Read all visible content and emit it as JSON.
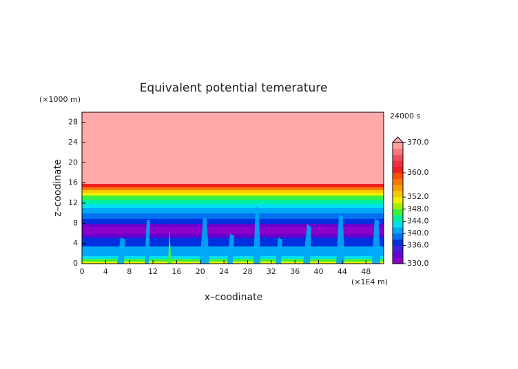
{
  "chart_data": {
    "type": "contour",
    "title": "Equivalent potential temerature",
    "xlabel": "x–coodinate",
    "ylabel": "z–coodinate",
    "x_unit_label": "(×1E4 m)",
    "y_unit_label": "(×1000 m)",
    "time_label": "24000 s",
    "xlim": [
      0,
      51
    ],
    "xticks": [
      0,
      4,
      8,
      12,
      16,
      20,
      24,
      28,
      32,
      36,
      40,
      44,
      48
    ],
    "ylim": [
      0,
      30
    ],
    "yticks": [
      0,
      4,
      8,
      12,
      16,
      20,
      24,
      28
    ],
    "colorbar": {
      "lim": [
        330,
        370
      ],
      "ticks": [
        {
          "value": 330,
          "label": "330.0"
        },
        {
          "value": 336,
          "label": "336.0"
        },
        {
          "value": 340,
          "label": "340.0"
        },
        {
          "value": 344,
          "label": "344.0"
        },
        {
          "value": 348,
          "label": "348.0"
        },
        {
          "value": 352,
          "label": "352.0"
        },
        {
          "value": 360,
          "label": "360.0"
        },
        {
          "value": 370,
          "label": "370.0"
        }
      ],
      "colors": [
        "#8a00c8",
        "#6a00d0",
        "#4020d8",
        "#0030e0",
        "#0070f0",
        "#00a8f8",
        "#00e0f0",
        "#00f0a0",
        "#40f040",
        "#a0f000",
        "#f0f000",
        "#f8c800",
        "#f8a000",
        "#f87800",
        "#f85000",
        "#f02020",
        "#f03040",
        "#f05060",
        "#f87878",
        "#ffa0a0"
      ],
      "over_color": "#ffaaaa"
    }
  }
}
